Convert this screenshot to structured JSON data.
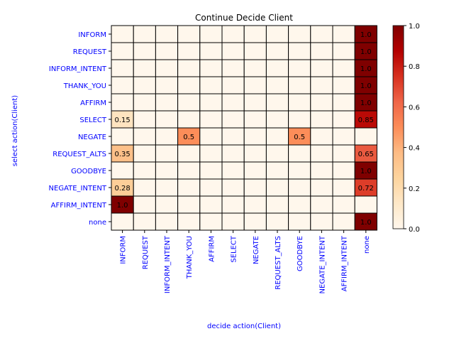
{
  "chart_data": {
    "type": "heatmap",
    "title": "Continue Decide Client",
    "xlabel": "decide action(Client)",
    "ylabel": "select action(Client)",
    "x_categories": [
      "INFORM",
      "REQUEST",
      "INFORM_INTENT",
      "THANK_YOU",
      "AFFIRM",
      "SELECT",
      "NEGATE",
      "REQUEST_ALTS",
      "GOODBYE",
      "NEGATE_INTENT",
      "AFFIRM_INTENT",
      "none"
    ],
    "y_categories": [
      "INFORM",
      "REQUEST",
      "INFORM_INTENT",
      "THANK_YOU",
      "AFFIRM",
      "SELECT",
      "NEGATE",
      "REQUEST_ALTS",
      "GOODBYE",
      "NEGATE_INTENT",
      "AFFIRM_INTENT",
      "none"
    ],
    "values": [
      [
        0,
        0,
        0,
        0,
        0,
        0,
        0,
        0,
        0,
        0,
        0,
        1.0
      ],
      [
        0,
        0,
        0,
        0,
        0,
        0,
        0,
        0,
        0,
        0,
        0,
        1.0
      ],
      [
        0,
        0,
        0,
        0,
        0,
        0,
        0,
        0,
        0,
        0,
        0,
        1.0
      ],
      [
        0,
        0,
        0,
        0,
        0,
        0,
        0,
        0,
        0,
        0,
        0,
        1.0
      ],
      [
        0,
        0,
        0,
        0,
        0,
        0,
        0,
        0,
        0,
        0,
        0,
        1.0
      ],
      [
        0.15,
        0,
        0,
        0,
        0,
        0,
        0,
        0,
        0,
        0,
        0,
        0.85
      ],
      [
        0,
        0,
        0,
        0.5,
        0,
        0,
        0,
        0,
        0.5,
        0,
        0,
        0
      ],
      [
        0.35,
        0,
        0,
        0,
        0,
        0,
        0,
        0,
        0,
        0,
        0,
        0.65
      ],
      [
        0,
        0,
        0,
        0,
        0,
        0,
        0,
        0,
        0,
        0,
        0,
        1.0
      ],
      [
        0.28,
        0,
        0,
        0,
        0,
        0,
        0,
        0,
        0,
        0,
        0,
        0.72
      ],
      [
        1.0,
        0,
        0,
        0,
        0,
        0,
        0,
        0,
        0,
        0,
        0,
        0
      ],
      [
        0,
        0,
        0,
        0,
        0,
        0,
        0,
        0,
        0,
        0,
        0,
        1.0
      ]
    ],
    "cell_labels": [
      [
        "",
        "",
        "",
        "",
        "",
        "",
        "",
        "",
        "",
        "",
        "",
        "1.0"
      ],
      [
        "",
        "",
        "",
        "",
        "",
        "",
        "",
        "",
        "",
        "",
        "",
        "1.0"
      ],
      [
        "",
        "",
        "",
        "",
        "",
        "",
        "",
        "",
        "",
        "",
        "",
        "1.0"
      ],
      [
        "",
        "",
        "",
        "",
        "",
        "",
        "",
        "",
        "",
        "",
        "",
        "1.0"
      ],
      [
        "",
        "",
        "",
        "",
        "",
        "",
        "",
        "",
        "",
        "",
        "",
        "1.0"
      ],
      [
        "0.15",
        "",
        "",
        "",
        "",
        "",
        "",
        "",
        "",
        "",
        "",
        "0.85"
      ],
      [
        "",
        "",
        "",
        "0.5",
        "",
        "",
        "",
        "",
        "0.5",
        "",
        "",
        ""
      ],
      [
        "0.35",
        "",
        "",
        "",
        "",
        "",
        "",
        "",
        "",
        "",
        "",
        "0.65"
      ],
      [
        "",
        "",
        "",
        "",
        "",
        "",
        "",
        "",
        "",
        "",
        "",
        "1.0"
      ],
      [
        "0.28",
        "",
        "",
        "",
        "",
        "",
        "",
        "",
        "",
        "",
        "",
        "0.72"
      ],
      [
        "1.0",
        "",
        "",
        "",
        "",
        "",
        "",
        "",
        "",
        "",
        "",
        ""
      ],
      [
        "",
        "",
        "",
        "",
        "",
        "",
        "",
        "",
        "",
        "",
        "",
        "1.0"
      ]
    ],
    "colormap": "OrRd",
    "value_range": [
      0.0,
      1.0
    ],
    "colorbar_ticks": [
      "0.0",
      "0.2",
      "0.4",
      "0.6",
      "0.8",
      "1.0"
    ],
    "grid": true,
    "colors": {
      "label_color": "#0000ff",
      "cell_border": "#000000"
    }
  }
}
